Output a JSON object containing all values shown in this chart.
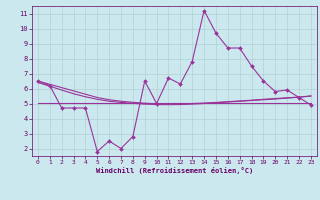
{
  "xlabel": "Windchill (Refroidissement éolien,°C)",
  "x": [
    0,
    1,
    2,
    3,
    4,
    5,
    6,
    7,
    8,
    9,
    10,
    11,
    12,
    13,
    14,
    15,
    16,
    17,
    18,
    19,
    20,
    21,
    22,
    23
  ],
  "y_main": [
    6.5,
    6.2,
    4.7,
    4.7,
    4.7,
    1.8,
    2.5,
    2.0,
    2.8,
    6.5,
    5.0,
    6.7,
    6.3,
    7.8,
    11.2,
    9.7,
    8.7,
    8.7,
    7.5,
    6.5,
    5.8,
    5.9,
    5.4,
    4.9
  ],
  "y_flat": [
    5.05,
    5.05,
    5.05,
    5.05,
    5.05,
    5.05,
    5.05,
    5.05,
    5.05,
    5.05,
    5.05,
    5.05,
    5.05,
    5.05,
    5.05,
    5.05,
    5.05,
    5.05,
    5.05,
    5.05,
    5.05,
    5.05,
    5.05,
    5.05
  ],
  "y_slope1": [
    6.5,
    6.28,
    6.06,
    5.84,
    5.62,
    5.4,
    5.25,
    5.15,
    5.08,
    5.02,
    4.98,
    4.97,
    4.98,
    5.0,
    5.03,
    5.07,
    5.12,
    5.17,
    5.22,
    5.28,
    5.33,
    5.38,
    5.43,
    5.5
  ],
  "y_slope2": [
    6.4,
    6.15,
    5.9,
    5.65,
    5.45,
    5.28,
    5.15,
    5.07,
    5.01,
    4.96,
    4.93,
    4.92,
    4.93,
    4.96,
    5.0,
    5.05,
    5.1,
    5.15,
    5.2,
    5.25,
    5.3,
    5.36,
    5.42,
    5.5
  ],
  "color": "#993399",
  "bg_color": "#cce8ef",
  "grid_color": "#aacccc",
  "label_color": "#660066",
  "ylim": [
    1.5,
    11.5
  ],
  "xlim": [
    -0.5,
    23.5
  ],
  "yticks": [
    2,
    3,
    4,
    5,
    6,
    7,
    8,
    9,
    10,
    11
  ],
  "xticks": [
    0,
    1,
    2,
    3,
    4,
    5,
    6,
    7,
    8,
    9,
    10,
    11,
    12,
    13,
    14,
    15,
    16,
    17,
    18,
    19,
    20,
    21,
    22,
    23
  ]
}
